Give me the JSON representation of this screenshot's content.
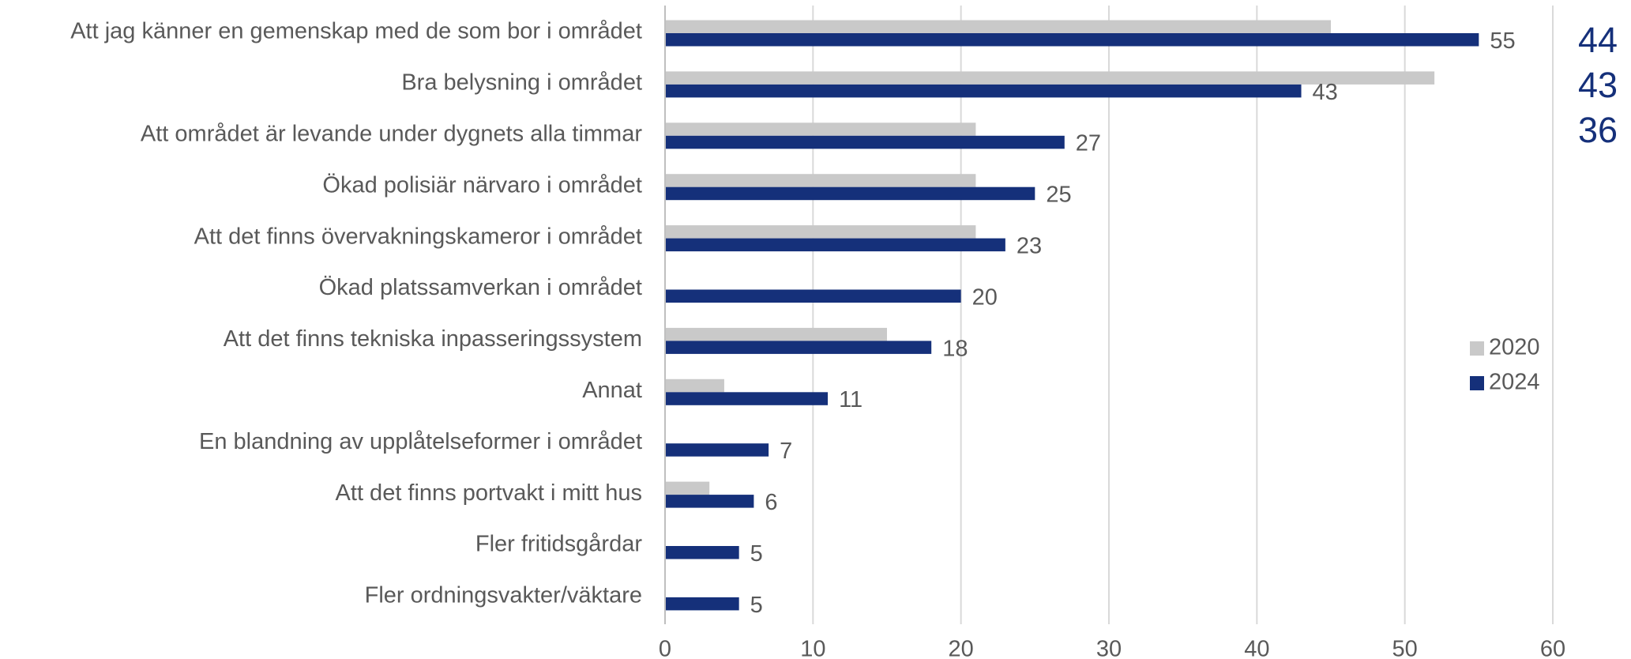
{
  "chart_data": {
    "type": "hbar",
    "categories": [
      "Att jag känner en gemenskap med de som bor i området",
      "Bra belysning i området",
      "Att området är levande under dygnets alla timmar",
      "Ökad polisiär närvaro i området",
      "Att det finns övervakningskameror i området",
      "Ökad platssamverkan i området",
      "Att det finns tekniska inpasseringssystem",
      "Annat",
      "En blandning av upplåtelseformer i området",
      "Att det finns portvakt i mitt hus",
      "Fler fritidsgårdar",
      "Fler ordningsvakter/väktare"
    ],
    "series": [
      {
        "name": "2020",
        "color": "#c9c9c9",
        "values": [
          45,
          52,
          21,
          21,
          21,
          null,
          15,
          4,
          null,
          3,
          null,
          null
        ],
        "labels": false
      },
      {
        "name": "2024",
        "color": "#15307a",
        "values": [
          55,
          43,
          27,
          25,
          23,
          20,
          18,
          11,
          7,
          6,
          5,
          5
        ],
        "labels": true
      }
    ],
    "xlim": [
      0,
      60
    ],
    "xticks": [
      0,
      10,
      20,
      30,
      40,
      50,
      60
    ],
    "grid": true,
    "annotations": [
      44,
      43,
      36
    ],
    "annotation_color": "#15307a"
  }
}
